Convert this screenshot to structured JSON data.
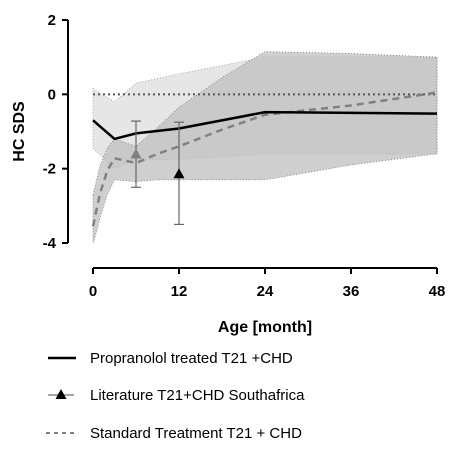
{
  "chart_data": {
    "type": "line",
    "xlabel": "Age [month]",
    "ylabel": "HC SDS",
    "xlim": [
      0,
      48
    ],
    "ylim": [
      -4,
      2
    ],
    "x_ticks": [
      "0",
      "12",
      "24",
      "36",
      "48"
    ],
    "y_ticks": [
      "2",
      "0",
      "-2",
      "-4"
    ],
    "reference_line_y": 0,
    "legend_position": "bottom",
    "colors": {
      "propranolol": "#000000",
      "literature": "#808080",
      "standard": "#808080",
      "band_standard": "#bfbfbf",
      "band_propranolol": "#e6e6e6"
    },
    "series": [
      {
        "name": "Propranolol treated T21 +CHD",
        "style": "solid",
        "x": [
          0,
          3,
          6,
          12,
          24,
          48
        ],
        "y": [
          -0.7,
          -1.2,
          -1.05,
          -0.92,
          -0.48,
          -0.52
        ],
        "band_upper": [
          0.15,
          -0.2,
          0.3,
          0.55,
          1.0,
          1.0
        ],
        "band_lower": [
          -1.45,
          -2.0,
          -1.75,
          -1.75,
          -1.6,
          -1.6
        ]
      },
      {
        "name": "Literature T21+CHD Southafrica",
        "style": "marker",
        "marker": "triangle",
        "x": [
          6,
          12
        ],
        "y": [
          -1.62,
          -2.15
        ],
        "err_upper": [
          -0.72,
          -0.75
        ],
        "err_lower": [
          -2.5,
          -3.5
        ]
      },
      {
        "name": "Standard Treatment T21 + CHD",
        "style": "dashed",
        "x": [
          0,
          0.5,
          1,
          2,
          3,
          6,
          9,
          12,
          18,
          24,
          36,
          48
        ],
        "y": [
          -3.55,
          -3.1,
          -2.65,
          -2.05,
          -1.72,
          -1.85,
          -1.6,
          -1.4,
          -0.95,
          -0.55,
          -0.3,
          0.05
        ],
        "band_upper": [
          -2.7,
          -2.3,
          -1.9,
          -1.45,
          -1.2,
          -1.4,
          -0.9,
          -0.35,
          0.45,
          1.15,
          1.1,
          1.0
        ],
        "band_lower": [
          -4.0,
          -3.7,
          -3.3,
          -2.7,
          -2.3,
          -2.35,
          -2.3,
          -2.3,
          -2.3,
          -2.3,
          -1.9,
          -1.6
        ]
      }
    ]
  }
}
